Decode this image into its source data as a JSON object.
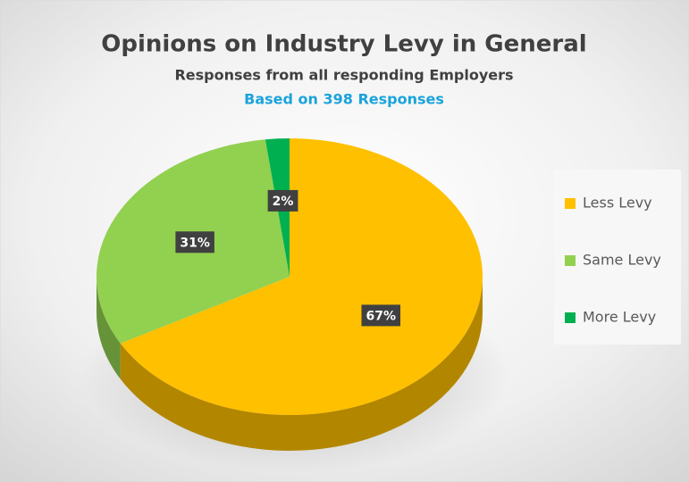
{
  "chart_data": {
    "type": "pie",
    "title": "Opinions on Industry Levy in General",
    "subtitle": "Responses from all responding Employers",
    "caption": "Based on 398 Responses",
    "categories": [
      "Less Levy",
      "Same Levy",
      "More Levy"
    ],
    "values": [
      67,
      31,
      2
    ],
    "value_labels": [
      "67%",
      "31%",
      "2%"
    ],
    "colors": [
      "#ffc000",
      "#92d050",
      "#00b050"
    ],
    "legend": "right"
  }
}
